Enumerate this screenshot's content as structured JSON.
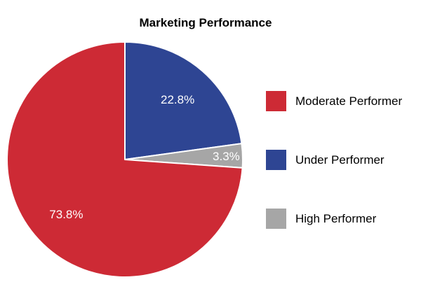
{
  "chart_data": {
    "type": "pie",
    "title": "Marketing Performance",
    "slices": [
      {
        "label": "Under Performer",
        "value": 22.8,
        "display": "22.8%",
        "color": "#2e4593"
      },
      {
        "label": "High Performer",
        "value": 3.3,
        "display": "3.3%",
        "color": "#a6a6a6"
      },
      {
        "label": "Moderate Performer",
        "value": 73.8,
        "display": "73.8%",
        "color": "#cd2a35"
      }
    ],
    "legend": {
      "placement": "right",
      "order": [
        "Moderate Performer",
        "Under Performer",
        "High Performer"
      ]
    }
  }
}
